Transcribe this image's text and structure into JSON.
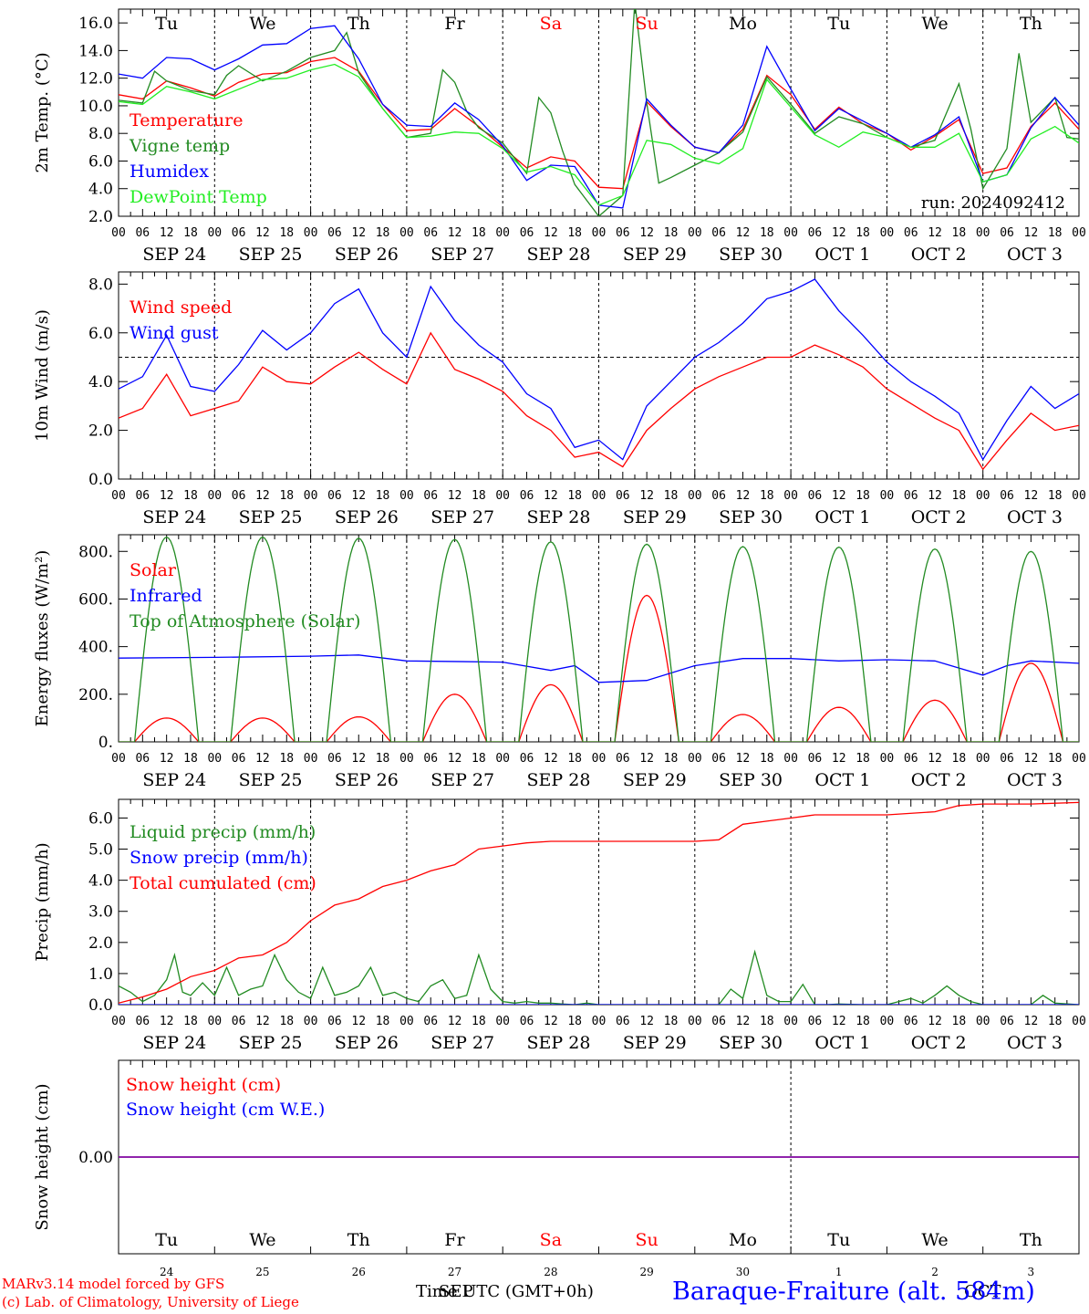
{
  "days": [
    "Tu",
    "We",
    "Th",
    "Fr",
    "Sa",
    "Su",
    "Mo",
    "Tu",
    "We",
    "Th"
  ],
  "weekend_days": [
    4,
    5
  ],
  "date_labels": [
    "SEP 24",
    "SEP 25",
    "SEP 26",
    "SEP 27",
    "SEP 28",
    "SEP 29",
    "SEP 30",
    "OCT  1",
    "OCT  2",
    "OCT  3"
  ],
  "hour_labels": [
    "00",
    "06",
    "12",
    "18"
  ],
  "final_hour_label": "00",
  "bottom_day_numbers": [
    "24",
    "25",
    "26",
    "27",
    "28",
    "29",
    "30",
    "1",
    "2",
    "3"
  ],
  "footer": {
    "credit_line1": "MARv3.14 model forced by GFS",
    "credit_line2": "(c) Lab. of Climatology, University of Liege",
    "time_axis": "Time UTC (GMT+0h)",
    "month_overlay_left": "SEP",
    "month_overlay_right": "OCT",
    "station": "Baraque-Fraiture (alt. 584m)"
  },
  "colors": {
    "red": "#ff0000",
    "green": "#228b22",
    "blue": "#0000ff",
    "lightgreen": "#22ee22",
    "purple": "#8000a0"
  },
  "chart_data": [
    {
      "type": "line",
      "ylabel": "2m Temp. (°C)",
      "ylim": [
        2,
        17
      ],
      "yticks": [
        "2.0",
        "4.0",
        "6.0",
        "8.0",
        "10.0",
        "12.0",
        "14.0",
        "16.0"
      ],
      "x_unit": "hours since 2024-09-24 00 UTC",
      "annotation": "run: 2024092412",
      "series": [
        {
          "name": "Temperature",
          "color": "red",
          "x": [
            0,
            6,
            12,
            18,
            24,
            30,
            36,
            42,
            48,
            54,
            60,
            66,
            72,
            78,
            84,
            90,
            96,
            102,
            108,
            114,
            120,
            126,
            132,
            138,
            144,
            150,
            156,
            162,
            168,
            174,
            180,
            186,
            192,
            198,
            204,
            210,
            216,
            222,
            228,
            234,
            240
          ],
          "values": [
            10.8,
            10.5,
            11.8,
            11.3,
            10.7,
            11.7,
            12.3,
            12.4,
            13.2,
            13.5,
            12.5,
            10.1,
            8.2,
            8.3,
            9.8,
            8.5,
            7.0,
            5.5,
            6.3,
            6.0,
            4.1,
            4.0,
            10.3,
            8.5,
            7.0,
            6.6,
            8.3,
            12.2,
            10.8,
            8.3,
            9.9,
            8.7,
            8.0,
            6.8,
            7.8,
            9.0,
            5.1,
            5.5,
            8.5,
            10.2,
            8.3
          ]
        },
        {
          "name": "Vigne temp",
          "color": "green",
          "x": [
            0,
            6,
            9,
            12,
            18,
            24,
            27,
            30,
            36,
            42,
            48,
            54,
            57,
            60,
            66,
            72,
            78,
            81,
            84,
            87,
            90,
            96,
            102,
            105,
            108,
            111,
            114,
            120,
            126,
            129,
            132,
            135,
            138,
            144,
            150,
            156,
            162,
            168,
            174,
            180,
            186,
            192,
            198,
            204,
            210,
            213,
            216,
            222,
            225,
            228,
            234,
            237,
            240
          ],
          "values": [
            10.4,
            10.2,
            12.5,
            11.8,
            11.1,
            10.8,
            12.2,
            12.9,
            11.8,
            12.5,
            13.5,
            14.0,
            15.3,
            12.4,
            9.8,
            7.7,
            8.0,
            12.6,
            11.7,
            9.6,
            8.4,
            7.3,
            5.1,
            10.6,
            9.5,
            6.7,
            4.3,
            2.0,
            3.5,
            17.5,
            10.2,
            4.4,
            4.8,
            5.7,
            6.6,
            8.1,
            12.1,
            10.1,
            8.0,
            9.2,
            8.7,
            7.7,
            7.0,
            7.5,
            11.6,
            8.3,
            4.0,
            6.9,
            13.8,
            8.8,
            10.6,
            7.7,
            7.6
          ]
        },
        {
          "name": "Humidex",
          "color": "blue",
          "x": [
            0,
            6,
            12,
            18,
            24,
            30,
            36,
            42,
            48,
            54,
            60,
            66,
            72,
            78,
            84,
            90,
            96,
            102,
            108,
            114,
            120,
            126,
            132,
            138,
            144,
            150,
            156,
            162,
            168,
            174,
            180,
            186,
            192,
            198,
            204,
            210,
            216,
            222,
            228,
            234,
            240
          ],
          "values": [
            12.3,
            12.0,
            13.5,
            13.4,
            12.6,
            13.4,
            14.4,
            14.5,
            15.6,
            15.8,
            13.4,
            10.1,
            8.6,
            8.5,
            10.2,
            9.0,
            7.1,
            4.6,
            5.7,
            5.6,
            2.8,
            2.6,
            10.5,
            8.6,
            7.0,
            6.6,
            8.6,
            14.3,
            11.2,
            8.2,
            9.8,
            8.9,
            8.0,
            7.0,
            7.9,
            9.2,
            4.5,
            5.0,
            8.4,
            10.6,
            8.6
          ]
        },
        {
          "name": "DewPoint Temp",
          "color": "lightgreen",
          "x": [
            0,
            6,
            12,
            18,
            24,
            30,
            36,
            42,
            48,
            54,
            60,
            66,
            72,
            78,
            84,
            90,
            96,
            102,
            108,
            114,
            120,
            126,
            132,
            138,
            144,
            150,
            156,
            162,
            168,
            174,
            180,
            186,
            192,
            198,
            204,
            210,
            216,
            222,
            228,
            234,
            240
          ],
          "values": [
            10.3,
            10.1,
            11.4,
            11.0,
            10.5,
            11.2,
            11.9,
            12.0,
            12.6,
            13.0,
            12.1,
            9.8,
            7.7,
            7.8,
            8.1,
            8.0,
            6.9,
            5.2,
            5.6,
            5.0,
            2.8,
            3.5,
            7.5,
            7.2,
            6.2,
            5.8,
            6.9,
            11.9,
            9.9,
            7.9,
            7.0,
            8.1,
            7.7,
            7.0,
            7.0,
            8.0,
            4.5,
            5.0,
            7.6,
            8.5,
            7.3
          ]
        }
      ]
    },
    {
      "type": "line",
      "ylabel": "10m Wind (m/s)",
      "ylim": [
        0,
        8.5
      ],
      "yticks": [
        "0.0",
        "2.0",
        "4.0",
        "6.0",
        "8.0"
      ],
      "x_unit": "hours since 2024-09-24 00 UTC",
      "series": [
        {
          "name": "Wind speed",
          "color": "red",
          "x": [
            0,
            6,
            12,
            18,
            24,
            30,
            36,
            42,
            48,
            54,
            60,
            66,
            72,
            78,
            84,
            90,
            96,
            102,
            108,
            114,
            120,
            126,
            132,
            138,
            144,
            150,
            156,
            162,
            168,
            174,
            180,
            186,
            192,
            198,
            204,
            210,
            216,
            222,
            228,
            234,
            240
          ],
          "values": [
            2.5,
            2.9,
            4.3,
            2.6,
            2.9,
            3.2,
            4.6,
            4.0,
            3.9,
            4.6,
            5.2,
            4.5,
            3.9,
            6.0,
            4.5,
            4.1,
            3.6,
            2.6,
            2.0,
            0.9,
            1.1,
            0.5,
            2.0,
            2.9,
            3.7,
            4.2,
            4.6,
            5.0,
            5.0,
            5.5,
            5.1,
            4.6,
            3.7,
            3.1,
            2.5,
            2.0,
            0.4,
            1.6,
            2.7,
            2.0,
            2.2
          ]
        },
        {
          "name": "Wind gust",
          "color": "blue",
          "x": [
            0,
            6,
            12,
            18,
            24,
            30,
            36,
            42,
            48,
            54,
            60,
            66,
            72,
            78,
            84,
            90,
            96,
            102,
            108,
            114,
            120,
            126,
            132,
            138,
            144,
            150,
            156,
            162,
            168,
            174,
            180,
            186,
            192,
            198,
            204,
            210,
            216,
            222,
            228,
            234,
            240
          ],
          "values": [
            3.7,
            4.2,
            5.9,
            3.8,
            3.6,
            4.7,
            6.1,
            5.3,
            6.0,
            7.2,
            7.8,
            6.0,
            5.0,
            7.9,
            6.5,
            5.5,
            4.8,
            3.5,
            2.9,
            1.3,
            1.6,
            0.8,
            3.0,
            4.0,
            5.0,
            5.6,
            6.4,
            7.4,
            7.7,
            8.2,
            6.9,
            5.9,
            4.8,
            4.0,
            3.4,
            2.7,
            0.8,
            2.4,
            3.8,
            2.9,
            3.5
          ]
        }
      ],
      "reference_line": 5.0
    },
    {
      "type": "line",
      "ylabel": "Energy fluxes (W/m²)",
      "ylim": [
        0,
        870
      ],
      "yticks": [
        "0.",
        "200.",
        "400.",
        "600.",
        "800."
      ],
      "x_unit": "hours since 2024-09-24 00 UTC",
      "series": [
        {
          "name": "Solar",
          "color": "red",
          "peak_hour": [
            12,
            36,
            60,
            84,
            108,
            132,
            156,
            180,
            204,
            228
          ],
          "peak_values": [
            100,
            100,
            105,
            200,
            240,
            615,
            115,
            145,
            175,
            330
          ]
        },
        {
          "name": "Infrared",
          "color": "blue",
          "x": [
            0,
            24,
            48,
            60,
            72,
            96,
            108,
            114,
            120,
            132,
            144,
            156,
            168,
            180,
            192,
            204,
            216,
            222,
            228,
            240
          ],
          "values": [
            352,
            355,
            360,
            365,
            340,
            335,
            300,
            320,
            250,
            258,
            320,
            350,
            350,
            340,
            345,
            340,
            280,
            320,
            340,
            330
          ]
        },
        {
          "name": "Top of Atmosphere (Solar)",
          "color": "green",
          "peak_hour": [
            12,
            36,
            60,
            84,
            108,
            132,
            156,
            180,
            204,
            228
          ],
          "peak_values": [
            860,
            860,
            855,
            850,
            840,
            830,
            820,
            818,
            810,
            800
          ]
        }
      ]
    },
    {
      "type": "line",
      "ylabel": "Precip (mm/h)",
      "ylim": [
        0,
        6.6
      ],
      "yticks": [
        "0.0",
        "1.0",
        "2.0",
        "3.0",
        "4.0",
        "5.0",
        "6.0"
      ],
      "x_unit": "hours since 2024-09-24 00 UTC",
      "series": [
        {
          "name": "Liquid precip (mm/h)",
          "color": "green",
          "x": [
            0,
            3,
            6,
            9,
            12,
            14,
            16,
            18,
            21,
            24,
            27,
            30,
            33,
            36,
            39,
            42,
            45,
            48,
            51,
            54,
            57,
            60,
            63,
            66,
            69,
            72,
            75,
            78,
            81,
            84,
            87,
            90,
            93,
            96,
            99,
            102,
            105,
            108,
            111,
            114,
            117,
            120,
            126,
            132,
            138,
            144,
            150,
            153,
            156,
            159,
            162,
            165,
            168,
            171,
            174,
            177,
            180,
            186,
            192,
            198,
            201,
            204,
            207,
            210,
            213,
            216,
            222,
            228,
            231,
            234,
            240
          ],
          "values": [
            0.6,
            0.4,
            0.1,
            0.3,
            0.8,
            1.6,
            0.4,
            0.3,
            0.7,
            0.3,
            1.2,
            0.3,
            0.5,
            0.6,
            1.6,
            0.8,
            0.4,
            0.2,
            1.2,
            0.3,
            0.4,
            0.6,
            1.2,
            0.3,
            0.4,
            0.2,
            0.1,
            0.6,
            0.8,
            0.2,
            0.3,
            1.6,
            0.5,
            0.1,
            0.05,
            0.1,
            0.05,
            0.05,
            0.02,
            0.0,
            0.05,
            0.0,
            0.0,
            0.0,
            0.0,
            0.0,
            0.0,
            0.5,
            0.2,
            1.7,
            0.3,
            0.1,
            0.1,
            0.65,
            0.0,
            0.0,
            0.02,
            0.0,
            0.0,
            0.2,
            0.05,
            0.3,
            0.6,
            0.3,
            0.1,
            0.0,
            0.0,
            0.0,
            0.3,
            0.05,
            0.0
          ]
        },
        {
          "name": "Snow precip (mm/h)",
          "color": "blue",
          "x": [
            0,
            240
          ],
          "values": [
            0,
            0
          ]
        },
        {
          "name": "Total cumulated (cm)",
          "color": "red",
          "x": [
            0,
            6,
            12,
            18,
            24,
            30,
            36,
            42,
            48,
            54,
            60,
            66,
            72,
            78,
            84,
            90,
            96,
            102,
            108,
            114,
            120,
            132,
            144,
            150,
            156,
            162,
            168,
            174,
            180,
            192,
            204,
            210,
            216,
            228,
            240
          ],
          "values": [
            0.05,
            0.25,
            0.5,
            0.9,
            1.1,
            1.5,
            1.6,
            2.0,
            2.7,
            3.2,
            3.4,
            3.8,
            4.0,
            4.3,
            4.5,
            5.0,
            5.1,
            5.2,
            5.25,
            5.25,
            5.25,
            5.25,
            5.25,
            5.3,
            5.8,
            5.9,
            6.0,
            6.1,
            6.1,
            6.1,
            6.2,
            6.4,
            6.45,
            6.45,
            6.5
          ]
        }
      ]
    },
    {
      "type": "line",
      "ylabel": "Snow height (cm)",
      "ylim": [
        -1,
        1
      ],
      "yticks": [
        "0.00"
      ],
      "x_unit": "hours since 2024-09-24 00 UTC",
      "series": [
        {
          "name": "Snow height (cm)",
          "color": "red",
          "x": [
            0,
            240
          ],
          "values": [
            0,
            0
          ]
        },
        {
          "name": "Snow height (cm W.E.)",
          "color": "blue",
          "x": [
            0,
            240
          ],
          "values": [
            0,
            0
          ]
        }
      ]
    }
  ]
}
